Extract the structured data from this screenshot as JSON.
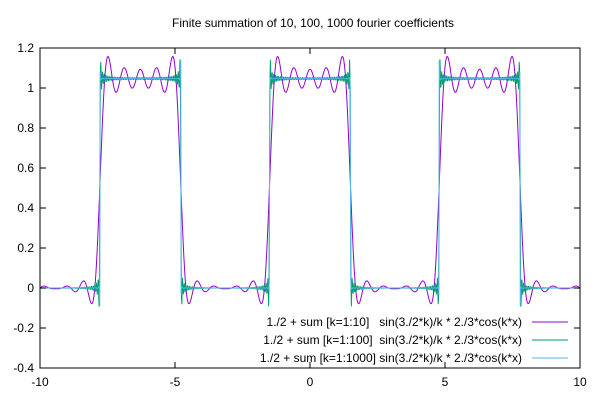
{
  "chart_data": {
    "type": "line",
    "title": "Finite summation of 10, 100, 1000 fourier coefficients",
    "xlabel": "",
    "ylabel": "",
    "xlim": [
      -10,
      10
    ],
    "ylim": [
      -0.4,
      1.2
    ],
    "xticks": [
      -10,
      -5,
      0,
      5,
      10
    ],
    "xtick_labels": [
      "-10",
      "-5",
      "0",
      "5",
      "10"
    ],
    "yticks": [
      -0.4,
      -0.2,
      0,
      0.2,
      0.4,
      0.6,
      0.8,
      1,
      1.2
    ],
    "ytick_labels": [
      "-0.4",
      "-0.2",
      "0",
      "0.2",
      "0.4",
      "0.6",
      "0.8",
      "1",
      "1.2"
    ],
    "grid": false,
    "legend_position": "bottom-right",
    "samples": 1500,
    "series": [
      {
        "name": "1./2 + sum [k=1:10]   sin(3./2*k)/k * 2./3*cos(k*x)",
        "n_terms": 10,
        "color": "#9400d3"
      },
      {
        "name": "1./2 + sum [k=1:100]  sin(3./2*k)/k * 2./3*cos(k*x)",
        "n_terms": 100,
        "color": "#009e73"
      },
      {
        "name": "1./2 + sum [k=1:1000] sin(3./2*k)/k * 2./3*cos(k*x)",
        "n_terms": 1000,
        "color": "#56b4e9"
      }
    ]
  }
}
